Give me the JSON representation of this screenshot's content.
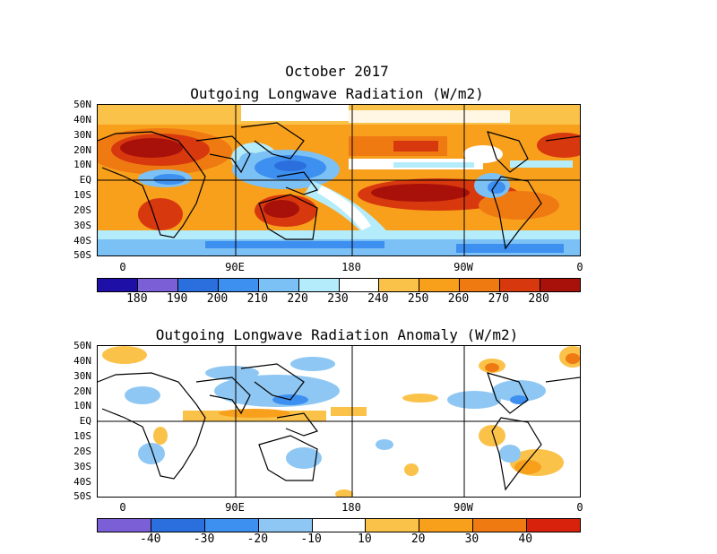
{
  "figure": {
    "date_title": "October 2017",
    "top_title": "Outgoing Longwave Radiation (W/m2)",
    "bottom_title": "Outgoing Longwave Radiation Anomaly (W/m2)"
  },
  "axes": {
    "lat_labels": [
      "50N",
      "40N",
      "30N",
      "20N",
      "10N",
      "EQ",
      "10S",
      "20S",
      "30S",
      "40S",
      "50S"
    ],
    "lon_labels": [
      "0",
      "90E",
      "180",
      "90W",
      "0"
    ]
  },
  "colorbars": {
    "olr": {
      "ticks": [
        "180",
        "190",
        "200",
        "210",
        "220",
        "230",
        "240",
        "250",
        "260",
        "270",
        "280"
      ],
      "colors": [
        "#1e10a6",
        "#7b5fd6",
        "#2a6fdd",
        "#3d8ff0",
        "#7cc1f5",
        "#b5ecfb",
        "#ffffff",
        "#fbc24a",
        "#f8a01c",
        "#ef7a12",
        "#d8380e",
        "#a8110a"
      ]
    },
    "anomaly": {
      "ticks": [
        "-40",
        "-30",
        "-20",
        "-10",
        "10",
        "20",
        "30",
        "40"
      ],
      "colors": [
        "#7b5fd6",
        "#2a6fdd",
        "#3d8ff0",
        "#8ec7f3",
        "#ffffff",
        "#fbc24a",
        "#f8a01c",
        "#ef7a12",
        "#d8220c"
      ]
    }
  }
}
